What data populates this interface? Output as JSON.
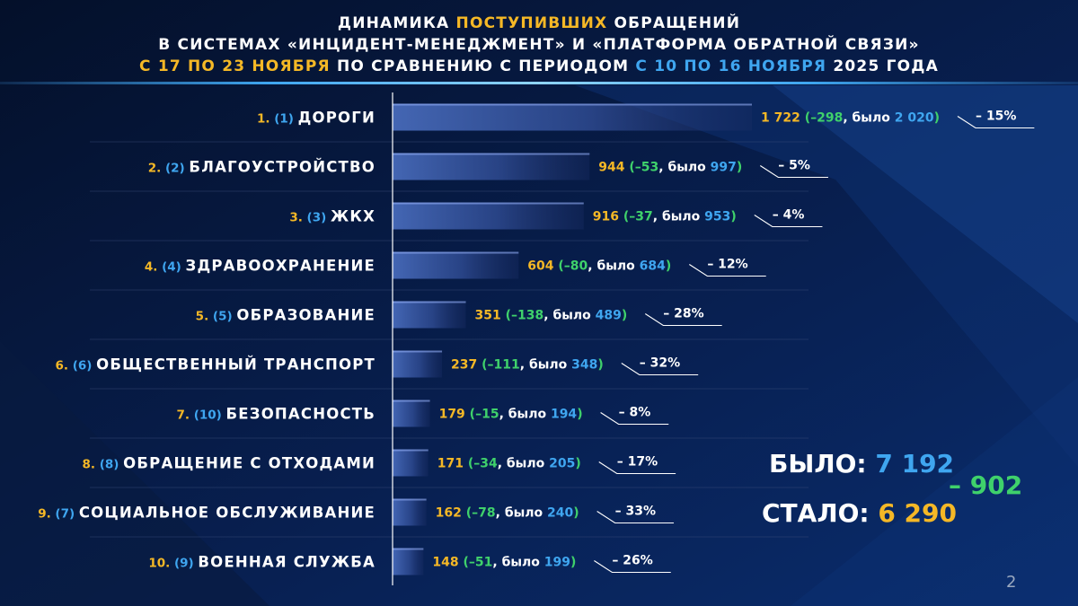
{
  "title": {
    "line1_a": "ДИНАМИКА ",
    "line1_b": "ПОСТУПИВШИХ",
    "line1_c": " ОБРАЩЕНИЙ",
    "line2": "В СИСТЕМАХ «ИНЦИДЕНТ-МЕНЕДЖМЕНТ» И «ПЛАТФОРМА ОБРАТНОЙ СВЯЗИ»",
    "line3_a": "С 17 ПО 23 НОЯБРЯ",
    "line3_b": " ПО СРАВНЕНИЮ С ПЕРИОДОМ ",
    "line3_c": "С 10 ПО 16 НОЯБРЯ",
    "line3_d": " 2025 ГОДА"
  },
  "chart_data": {
    "type": "bar",
    "orientation": "horizontal",
    "categories": [
      "ДОРОГИ",
      "БЛАГОУСТРОЙСТВО",
      "ЖКХ",
      "ЗДРАВООХРАНЕНИЕ",
      "ОБРАЗОВАНИЕ",
      "ОБЩЕСТВЕННЫЙ ТРАНСПОРТ",
      "БЕЗОПАСНОСТЬ",
      "ОБРАЩЕНИЕ С ОТХОДАМИ",
      "СОЦИАЛЬНОЕ ОБСЛУЖИВАНИЕ",
      "ВОЕННАЯ СЛУЖБА"
    ],
    "rank_current": [
      "1.",
      "2.",
      "3.",
      "4.",
      "5.",
      "6.",
      "7.",
      "8.",
      "9.",
      "10."
    ],
    "rank_previous": [
      "(1)",
      "(2)",
      "(3)",
      "(4)",
      "(5)",
      "(6)",
      "(10)",
      "(8)",
      "(7)",
      "(9)"
    ],
    "values": [
      1722,
      944,
      916,
      604,
      351,
      237,
      179,
      171,
      162,
      148
    ],
    "value_labels": [
      "1 722",
      "944",
      "916",
      "604",
      "351",
      "237",
      "179",
      "171",
      "162",
      "148"
    ],
    "previous_values": [
      2020,
      997,
      953,
      684,
      489,
      348,
      194,
      205,
      240,
      199
    ],
    "previous_labels": [
      "2 020",
      "997",
      "953",
      "684",
      "489",
      "348",
      "194",
      "205",
      "240",
      "199"
    ],
    "change_labels": [
      "–298",
      "–53",
      "–37",
      "–80",
      "–138",
      "–111",
      "–15",
      "–34",
      "–78",
      "–51"
    ],
    "percent_labels": [
      "– 15%",
      "– 5%",
      "– 4%",
      "– 12%",
      "– 28%",
      "– 32%",
      "– 8%",
      "– 17%",
      "– 33%",
      "– 26%"
    ],
    "was_word": ", было ",
    "xlim": [
      0,
      1722
    ]
  },
  "summary": {
    "was_label": "БЫЛО: ",
    "was_value": "7 192",
    "now_label": "СТАЛО: ",
    "now_value": "6 290",
    "diff": "– 902"
  },
  "page_number": "2",
  "colors": {
    "accent_yellow": "#f5b826",
    "accent_blue": "#3fa6f0",
    "accent_green": "#3fd16b",
    "background": "#061634"
  }
}
